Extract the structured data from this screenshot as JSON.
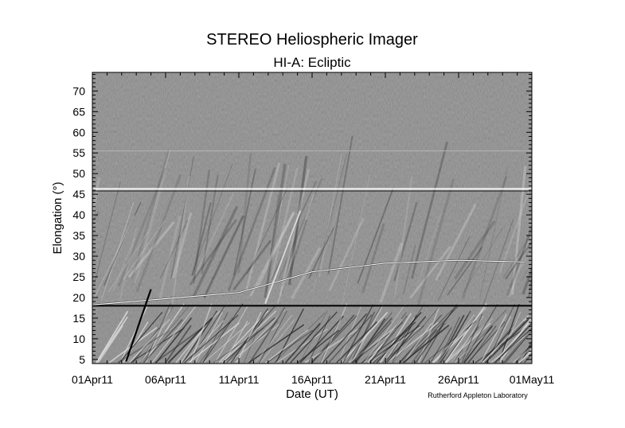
{
  "chart_data": {
    "type": "heatmap",
    "title": "STEREO Heliospheric Imager",
    "subtitle": "HI-A: Ecliptic",
    "xlabel": "Date (UT)",
    "ylabel": "Elongation (°)",
    "x_tick_labels": [
      "01Apr11",
      "06Apr11",
      "11Apr11",
      "16Apr11",
      "21Apr11",
      "26Apr11",
      "01May11"
    ],
    "y_tick_labels": [
      "5",
      "10",
      "15",
      "20",
      "25",
      "30",
      "35",
      "40",
      "45",
      "50",
      "55",
      "60",
      "65",
      "70"
    ],
    "xlim": [
      "2011-04-01",
      "2011-05-01"
    ],
    "ylim": [
      4,
      74.5
    ],
    "colormap": "grayscale",
    "features": [
      {
        "kind": "bright horizontal band",
        "elongation": 46
      },
      {
        "kind": "faint horizontal band",
        "elongation": 55.5
      },
      {
        "kind": "instrument boundary",
        "elongation": 18
      },
      {
        "kind": "planet track",
        "points": [
          [
            0,
            18.2
          ],
          [
            10,
            21.2
          ],
          [
            15,
            26.2
          ],
          [
            20,
            28.3
          ],
          [
            25,
            29.0
          ],
          [
            29.5,
            28.6
          ]
        ]
      },
      {
        "kind": "steep bright track",
        "points": [
          [
            11.8,
            18.5
          ],
          [
            14.2,
            41.0
          ]
        ]
      },
      {
        "kind": "steep dark track",
        "points": [
          [
            2.3,
            4.5
          ],
          [
            4.0,
            22.0
          ]
        ]
      }
    ]
  },
  "credit": "Rutherford Appleton Laboratory",
  "colors": {
    "background": "#ffffff",
    "plot_gray": "#808080",
    "axis": "#000000"
  }
}
